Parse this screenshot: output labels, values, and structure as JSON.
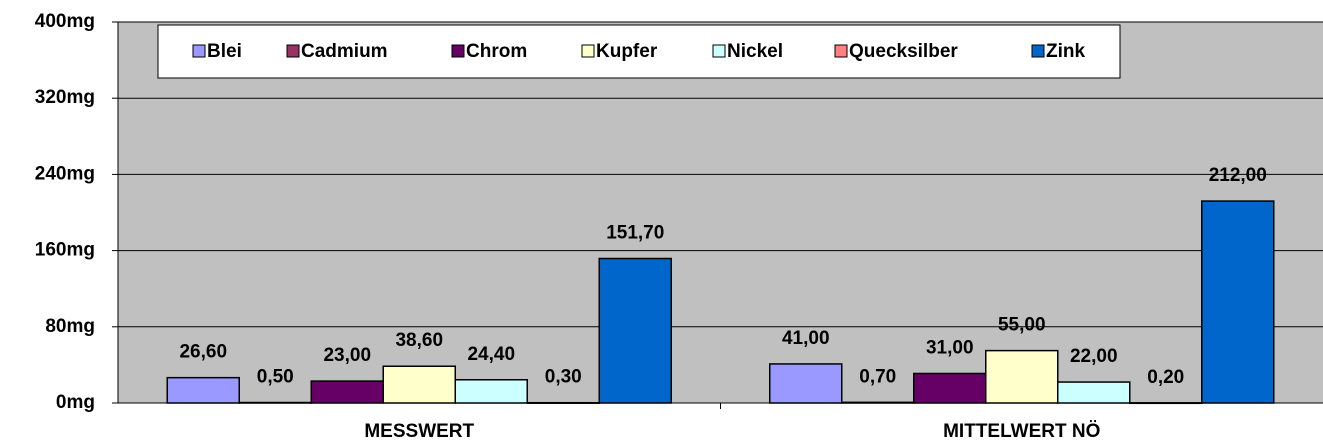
{
  "chart_data": {
    "type": "bar",
    "categories": [
      "MESSWERT",
      "MITTELWERT NÖ"
    ],
    "series": [
      {
        "name": "Blei",
        "color": "#9999ff",
        "values": [
          26.6,
          41.0
        ],
        "value_labels": [
          "26,60",
          "41,00"
        ]
      },
      {
        "name": "Cadmium",
        "color": "#993366",
        "values": [
          0.5,
          0.7
        ],
        "value_labels": [
          "0,50",
          "0,70"
        ]
      },
      {
        "name": "Chrom",
        "color": "#660066",
        "values": [
          23.0,
          31.0
        ],
        "value_labels": [
          "23,00",
          "31,00"
        ]
      },
      {
        "name": "Kupfer",
        "color": "#ffffcc",
        "values": [
          38.6,
          55.0
        ],
        "value_labels": [
          "38,60",
          "55,00"
        ]
      },
      {
        "name": "Nickel",
        "color": "#ccffff",
        "values": [
          24.4,
          22.0
        ],
        "value_labels": [
          "24,40",
          "22,00"
        ]
      },
      {
        "name": "Quecksilber",
        "color": "#ff8080",
        "values": [
          0.3,
          0.2
        ],
        "value_labels": [
          "0,30",
          "0,20"
        ]
      },
      {
        "name": "Zink",
        "color": "#0066cc",
        "values": [
          151.7,
          212.0
        ],
        "value_labels": [
          "151,70",
          "212,00"
        ]
      }
    ],
    "ylim": [
      0,
      400
    ],
    "yticks": [
      {
        "value": 0,
        "label": "0mg"
      },
      {
        "value": 80,
        "label": "80mg"
      },
      {
        "value": 160,
        "label": "160mg"
      },
      {
        "value": 240,
        "label": "240mg"
      },
      {
        "value": 320,
        "label": "320mg"
      },
      {
        "value": 400,
        "label": "400mg"
      }
    ],
    "grid": true,
    "legend": "top"
  }
}
